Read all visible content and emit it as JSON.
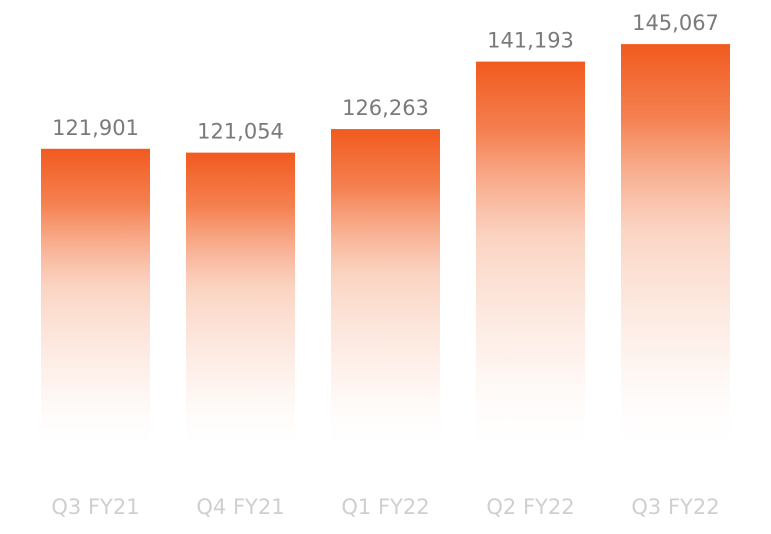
{
  "chart_data": {
    "type": "bar",
    "categories": [
      "Q3 FY21",
      "Q4 FY21",
      "Q1 FY22",
      "Q2 FY22",
      "Q3 FY22"
    ],
    "values": [
      121901,
      121054,
      126263,
      141193,
      145067
    ],
    "value_labels": [
      "121,901",
      "121,054",
      "126,263",
      "141,193",
      "145,067"
    ],
    "title": "",
    "xlabel": "",
    "ylabel": "",
    "grid": false,
    "legend": "none",
    "colors": {
      "bar_top": "#f15a1e",
      "bar_bottom": "#ffffff",
      "value_text": "#7a7a7a",
      "category_text": "#cfcfcf"
    }
  }
}
